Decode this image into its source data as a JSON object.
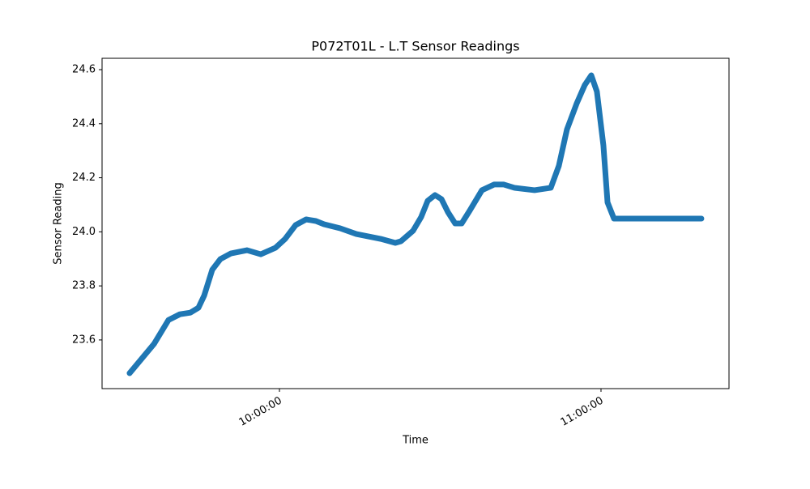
{
  "chart_data": {
    "type": "line",
    "title": "P072T01L - L.T Sensor Readings",
    "x_label": "Time",
    "y_label": "Sensor Reading",
    "x": [
      "09:32:02",
      "09:36:35",
      "09:39:18",
      "09:41:25",
      "09:43:23",
      "09:44:53",
      "09:45:57",
      "09:47:28",
      "09:48:58",
      "09:50:56",
      "09:53:57",
      "09:56:31",
      "09:59:15",
      "10:01:04",
      "10:03:01",
      "10:04:59",
      "10:06:48",
      "10:08:19",
      "10:11:20",
      "10:14:21",
      "10:18:53",
      "10:21:37",
      "10:22:40",
      "10:24:56",
      "10:26:27",
      "10:27:40",
      "10:29:01",
      "10:30:14",
      "10:31:26",
      "10:32:47",
      "10:34:00",
      "10:35:31",
      "10:37:47",
      "10:40:03",
      "10:41:52",
      "10:43:50",
      "10:47:36",
      "10:50:38",
      "10:52:08",
      "10:53:39",
      "10:55:28",
      "10:56:58",
      "10:58:11",
      "10:59:14",
      "11:00:27",
      "11:01:13",
      "11:02:25",
      "11:18:44"
    ],
    "series": [
      {
        "color": "#1f77b4",
        "values": [
          23.477,
          23.585,
          23.674,
          23.695,
          23.701,
          23.719,
          23.764,
          23.86,
          23.899,
          23.92,
          23.932,
          23.917,
          23.941,
          23.974,
          24.025,
          24.046,
          24.04,
          24.028,
          24.013,
          23.992,
          23.974,
          23.959,
          23.965,
          24.004,
          24.055,
          24.115,
          24.136,
          24.121,
          24.073,
          24.031,
          24.031,
          24.079,
          24.154,
          24.175,
          24.175,
          24.163,
          24.154,
          24.163,
          24.244,
          24.379,
          24.475,
          24.543,
          24.579,
          24.519,
          24.319,
          24.109,
          24.049,
          24.049
        ]
      }
    ],
    "xlim": [
      "09:26:54",
      "11:23:53"
    ],
    "xticks": [
      "10:00:00",
      "11:00:00"
    ],
    "ylim": [
      23.42,
      24.642
    ],
    "yticks": [
      23.6,
      23.8,
      {
        "value": 24,
        "label": "24.0"
      },
      24.2,
      24.4,
      24.6
    ],
    "grid": false
  }
}
